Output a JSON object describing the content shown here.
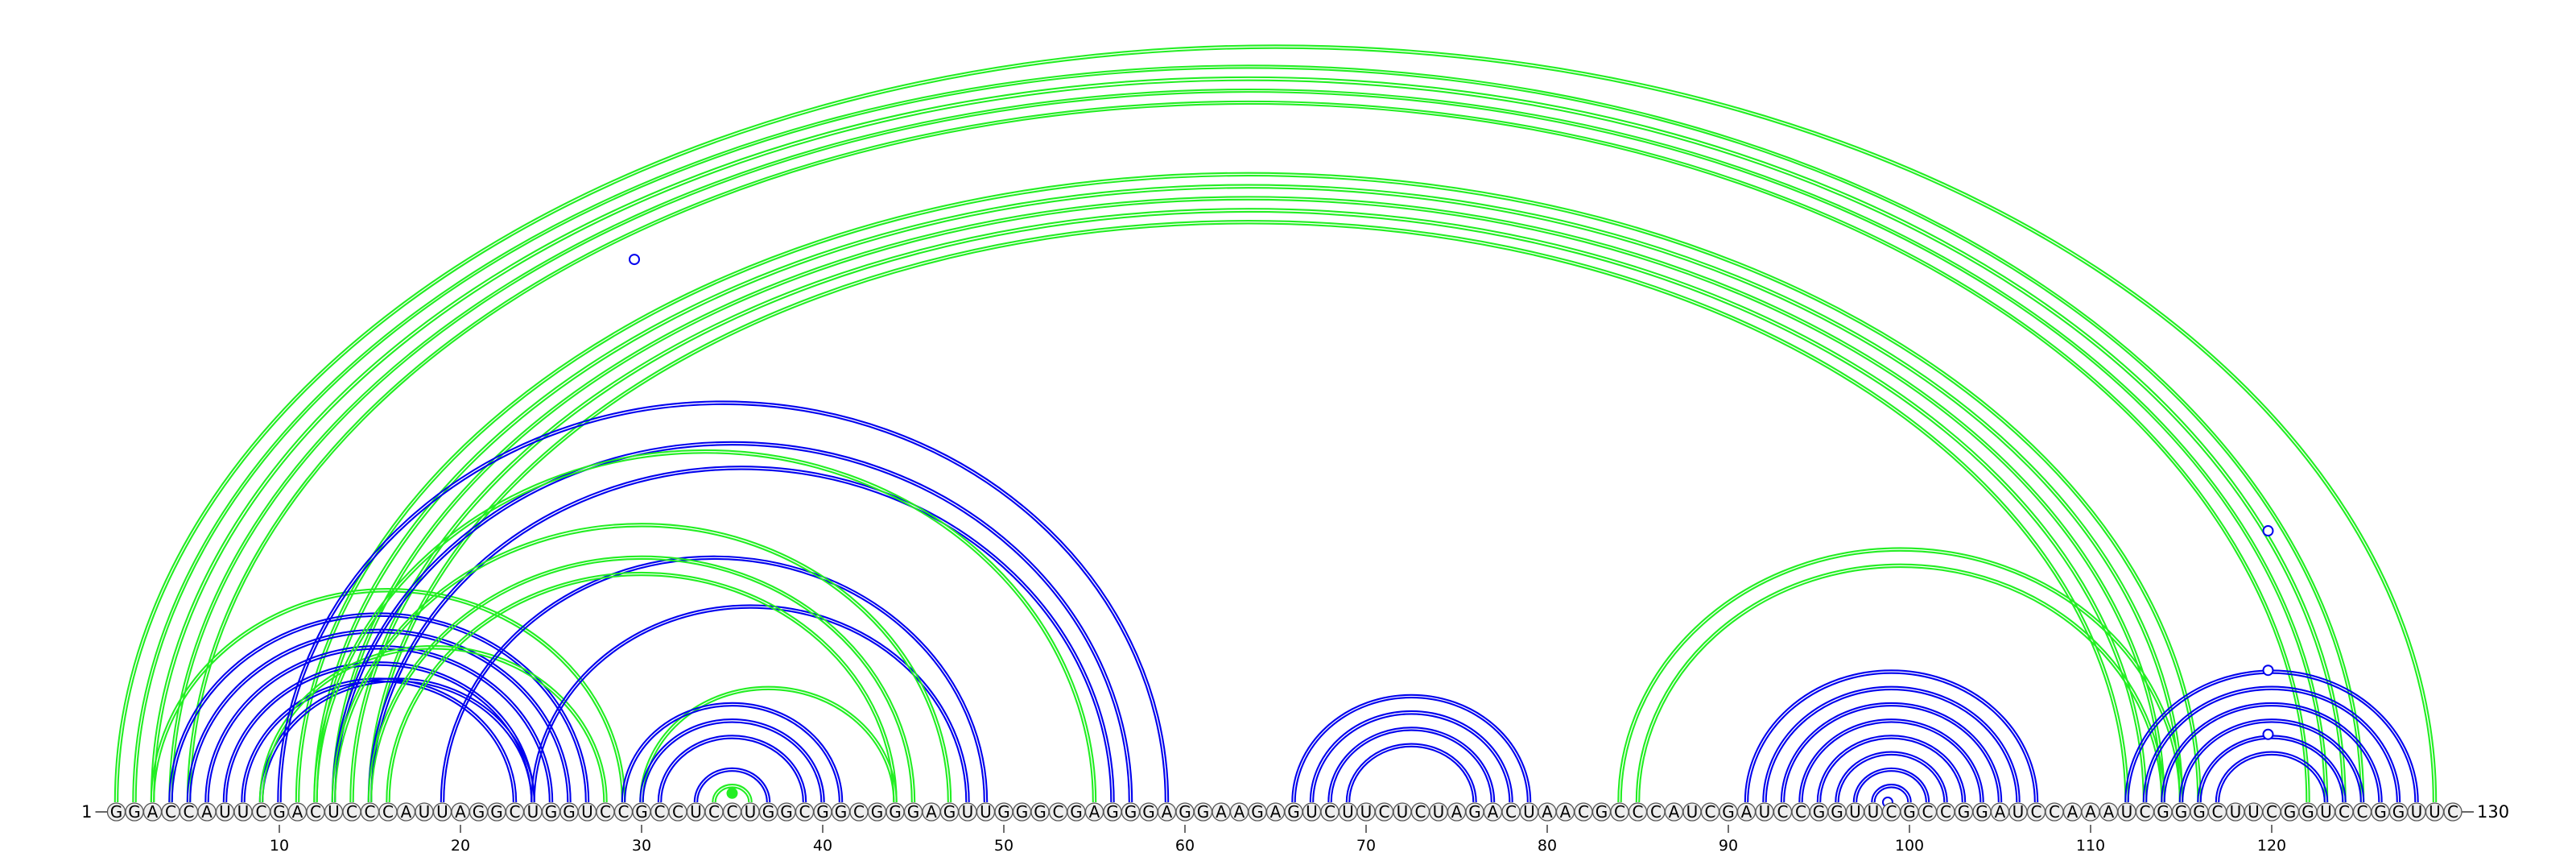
{
  "sequence": "GGACCAUUCGACUCCCAUUAGGCUGGUCCGCCUCCUGGCGGCGGGAGUUGGGCGAGGGAGGAAGAGUCUUCUCUAGACUAACGCCCAUCGAUCCGGUUCGCCGGAUCCAAAUCGGGCUUCGGUCCGGUUC",
  "start_label": "1",
  "end_label": "130",
  "tick_labels": [
    "10",
    "20",
    "30",
    "40",
    "50",
    "60",
    "70",
    "80",
    "90",
    "100",
    "110",
    "120"
  ],
  "colors": {
    "blue": "#0000ee",
    "green": "#22ee22",
    "node_fill": "#eeeeee",
    "node_stroke": "#555555"
  },
  "helices": [
    {
      "color": "green",
      "start": 1,
      "end": 129,
      "length": 1,
      "double": true
    },
    {
      "color": "green",
      "start": 2,
      "end": 125,
      "length": 4,
      "double": true
    },
    {
      "color": "green",
      "start": 11,
      "end": 116,
      "length": 5,
      "double": true
    },
    {
      "color": "blue",
      "start": 4,
      "end": 27,
      "length": 5,
      "double": true
    },
    {
      "color": "blue",
      "start": 9,
      "end": 24,
      "length": 1,
      "double": true
    },
    {
      "color": "green",
      "start": 3,
      "end": 29,
      "length": 1,
      "double": true
    },
    {
      "color": "green",
      "start": 9,
      "end": 28,
      "length": 1,
      "double": true
    },
    {
      "color": "blue",
      "start": 10,
      "end": 59,
      "length": 1,
      "double": true
    },
    {
      "color": "blue",
      "start": 13,
      "end": 57,
      "length": 1,
      "double": true
    },
    {
      "color": "blue",
      "start": 15,
      "end": 56,
      "length": 1,
      "double": true
    },
    {
      "color": "blue",
      "start": 19,
      "end": 49,
      "length": 1,
      "double": true
    },
    {
      "color": "blue",
      "start": 24,
      "end": 48,
      "length": 1,
      "double": true
    },
    {
      "color": "green",
      "start": 12,
      "end": 55,
      "length": 1,
      "double": true
    },
    {
      "color": "green",
      "start": 13,
      "end": 47,
      "length": 1,
      "double": true
    },
    {
      "color": "green",
      "start": 15,
      "end": 45,
      "length": 2,
      "double": true
    },
    {
      "color": "green",
      "start": 30,
      "end": 44,
      "length": 1,
      "double": true
    },
    {
      "color": "blue",
      "start": 29,
      "end": 41,
      "length": 3,
      "double": true
    },
    {
      "color": "blue",
      "start": 33,
      "end": 37,
      "length": 1,
      "double": true
    },
    {
      "color": "green",
      "start": 34,
      "end": 36,
      "length": 1,
      "double": true
    },
    {
      "color": "blue",
      "start": 66,
      "end": 79,
      "length": 4,
      "double": true
    },
    {
      "color": "green",
      "start": 84,
      "end": 115,
      "length": 2,
      "double": true
    },
    {
      "color": "blue",
      "start": 91,
      "end": 107,
      "length": 6,
      "double": true
    },
    {
      "color": "blue",
      "start": 97,
      "end": 101,
      "length": 2,
      "double": true
    },
    {
      "color": "blue",
      "start": 112,
      "end": 128,
      "length": 5,
      "double": true
    },
    {
      "color": "blue",
      "start": 117,
      "end": 123,
      "length": 1,
      "double": true
    }
  ],
  "markers": [
    {
      "x_pos": 29.6,
      "y_level": 0.72,
      "color": "blue",
      "fill": "open"
    },
    {
      "x_pos": 35.0,
      "y_level": 0.012,
      "color": "green",
      "fill": "solid"
    },
    {
      "x_pos": 98.8,
      "y_level": 0.0,
      "color": "blue",
      "fill": "open"
    },
    {
      "x_pos": 119.8,
      "y_level": 0.09,
      "color": "blue",
      "fill": "open"
    },
    {
      "x_pos": 119.8,
      "y_level": 0.175,
      "color": "blue",
      "fill": "open"
    },
    {
      "x_pos": 119.8,
      "y_level": 0.36,
      "color": "blue",
      "fill": "open"
    }
  ]
}
